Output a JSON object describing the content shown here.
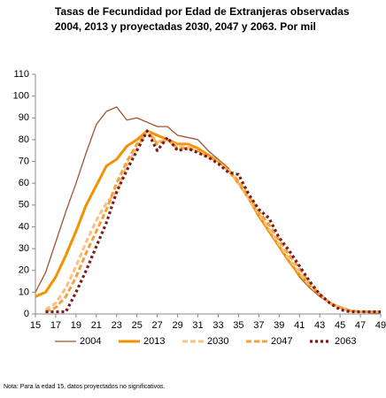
{
  "chart_data": {
    "type": "line",
    "title": [
      "Tasas de Fecundidad por Edad de Extranjeras observadas",
      "2004, 2013 y proyectadas 2030, 2047 y 2063. Por mil"
    ],
    "note": "Nota: Para la edad 15, datos proyectados no significativos.",
    "x": [
      15,
      16,
      17,
      18,
      19,
      20,
      21,
      22,
      23,
      24,
      25,
      26,
      27,
      28,
      29,
      30,
      31,
      32,
      33,
      34,
      35,
      36,
      37,
      38,
      39,
      40,
      41,
      42,
      43,
      44,
      45,
      46,
      47,
      48,
      49
    ],
    "xlim": [
      15,
      49
    ],
    "xticks": [
      15,
      17,
      19,
      21,
      23,
      25,
      27,
      29,
      31,
      33,
      35,
      37,
      39,
      41,
      43,
      45,
      47,
      49
    ],
    "ylim": [
      0,
      110
    ],
    "yticks": [
      0,
      10,
      20,
      30,
      40,
      50,
      60,
      70,
      80,
      90,
      100,
      110
    ],
    "series": [
      {
        "name": "2004",
        "color": "#a0522d",
        "values": [
          10,
          19,
          33,
          47,
          60,
          74,
          87,
          93,
          95,
          89,
          90,
          88,
          86,
          86,
          82,
          81,
          80,
          75,
          71,
          67,
          60,
          53,
          45,
          38,
          31,
          24,
          17,
          12,
          8,
          5,
          3,
          1.5,
          1,
          0.5,
          0.5
        ]
      },
      {
        "name": "2013",
        "color": "#f39200",
        "values": [
          8,
          10,
          17,
          27,
          38,
          50,
          59,
          68,
          71,
          77,
          80,
          84,
          82,
          80,
          78,
          78,
          76,
          73,
          70,
          66,
          60,
          53,
          45,
          38,
          31,
          24,
          18,
          13,
          9,
          5,
          3,
          1.5,
          1,
          1,
          1
        ]
      },
      {
        "name": "2030",
        "color": "#f9c08a",
        "values": [
          null,
          2,
          5,
          12,
          22,
          33,
          43,
          51,
          56,
          68,
          76,
          84,
          79,
          80,
          77,
          77,
          75,
          72,
          70,
          66,
          60,
          53,
          46,
          39,
          32,
          25,
          19,
          13,
          9,
          5,
          3,
          1.5,
          1,
          1,
          1
        ]
      },
      {
        "name": "2047",
        "color": "#f7a13a",
        "values": [
          null,
          1,
          3,
          8,
          17,
          28,
          38,
          48,
          60,
          70,
          78,
          84,
          78,
          80,
          76,
          76,
          75,
          72,
          70,
          66,
          61,
          54,
          47,
          41,
          34,
          27,
          21,
          14,
          9,
          5,
          3,
          1.5,
          1,
          1,
          1
        ]
      },
      {
        "name": "2063",
        "color": "#7b1c1c",
        "values": [
          null,
          1,
          1,
          1,
          10,
          20,
          31,
          42,
          56,
          66,
          75,
          84,
          75,
          81,
          75,
          76,
          74,
          72,
          69,
          65,
          64,
          55,
          48,
          44,
          35,
          29,
          22,
          15,
          9,
          5,
          2,
          1,
          1,
          1,
          1
        ]
      }
    ]
  }
}
